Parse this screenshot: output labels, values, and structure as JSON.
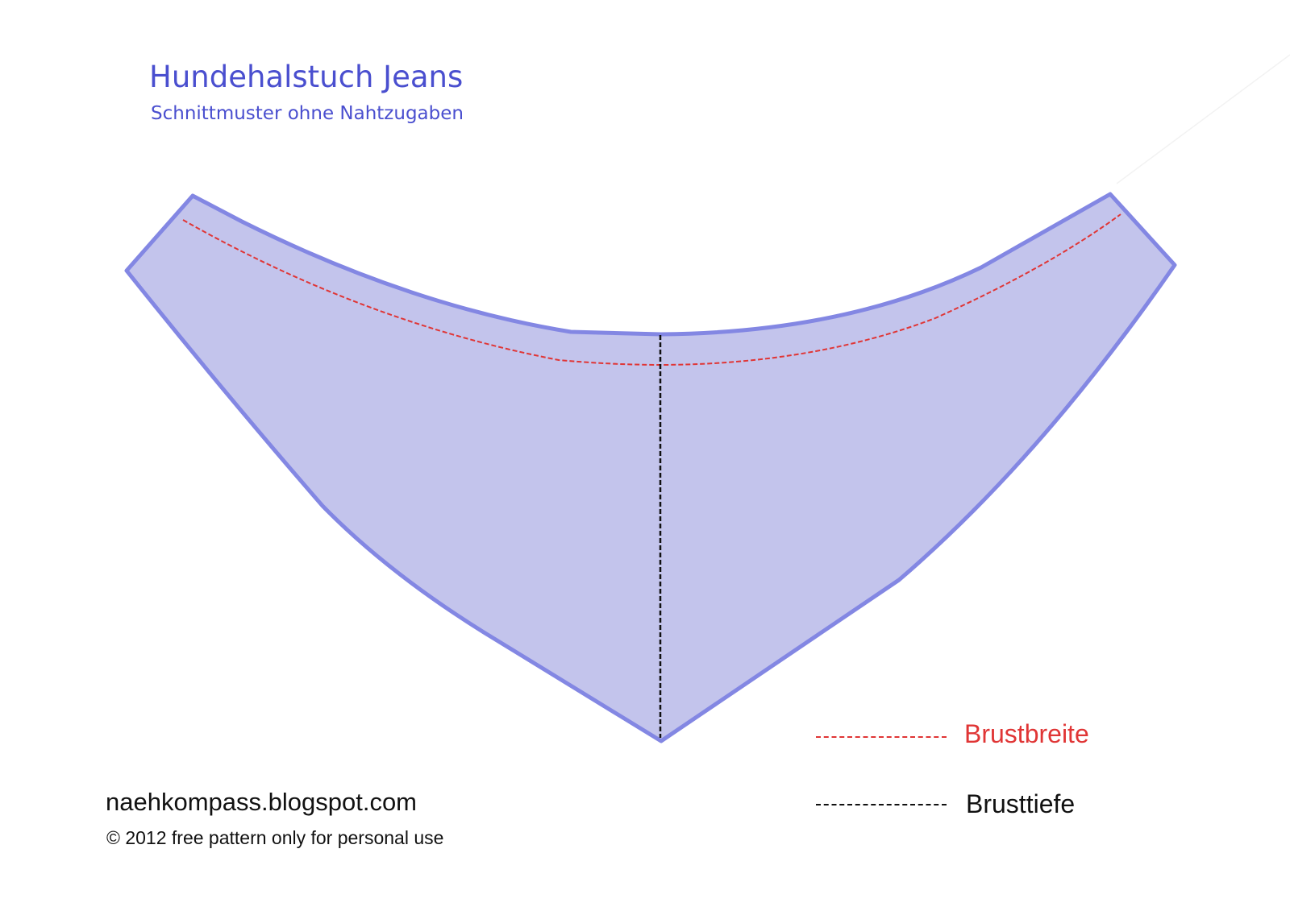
{
  "header": {
    "title": "Hundehalstuch Jeans",
    "subtitle": "Schnittmuster ohne Nahtzugaben"
  },
  "legend": {
    "items": [
      {
        "label": "Brustbreite",
        "color": "#e03535",
        "line_color": "#e03535"
      },
      {
        "label": "Brusttiefe",
        "color": "#111111",
        "line_color": "#111111"
      }
    ]
  },
  "footer": {
    "site": "naehkompass.blogspot.com",
    "copyright": "© 2012 free pattern only for personal use"
  },
  "colors": {
    "fill": "#c3c4ec",
    "outline": "#8387e3",
    "title": "#4a4fcf"
  }
}
